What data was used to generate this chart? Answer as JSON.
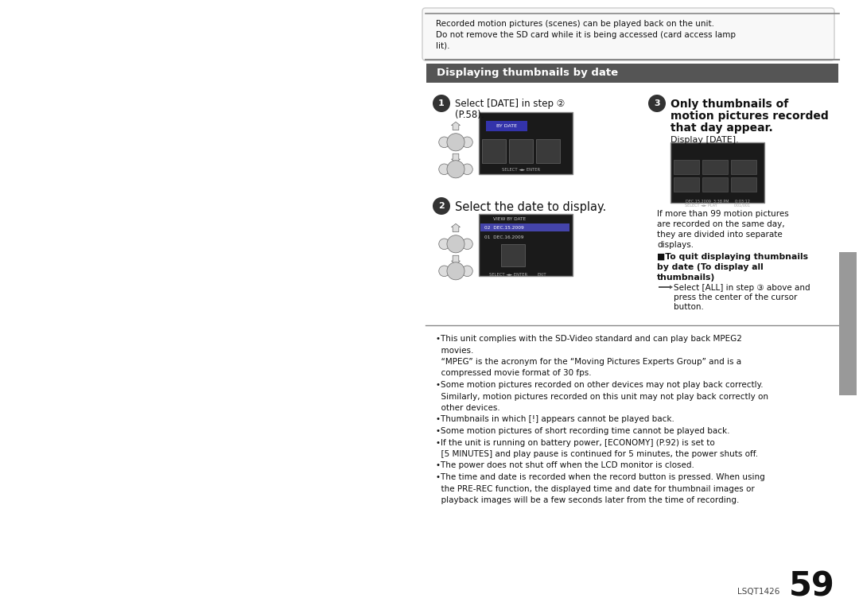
{
  "bg_color": "#f0f0f0",
  "page_bg": "#ffffff",
  "right_tab_color": "#a0a0a0",
  "header_bar_color": "#555555",
  "header_text": "Displaying thumbnails by date",
  "header_text_color": "#ffffff",
  "top_note_line1": "Recorded motion pictures (scenes) can be played back on the unit.",
  "top_note_line2": "Do not remove the SD card while it is being accessed (card access lamp",
  "top_note_line3": "lit).",
  "step1_text_line1": "Select [DATE] in step ②",
  "step1_text_line2": "(P.58).",
  "step2_text": "Select the date to display.",
  "step3_text_line1": "Only thumbnails of",
  "step3_text_line2": "motion pictures recorded",
  "step3_text_line3": "that day appear.",
  "display_date_label": "Display [DATE].",
  "page_number": "59",
  "lsqt_code": "LSQT1426",
  "bottom_lines": [
    "•This unit complies with the SD-Video standard and can play back MPEG2",
    "  movies.",
    "  “MPEG” is the acronym for the “Moving Pictures Experts Group” and is a",
    "  compressed movie format of 30 fps.",
    "•Some motion pictures recorded on other devices may not play back correctly.",
    "  Similarly, motion pictures recorded on this unit may not play back correctly on",
    "  other devices.",
    "•Thumbnails in which [!] appears cannot be played back.",
    "•Some motion pictures of short recording time cannot be played back.",
    "•If the unit is running on battery power, [ECONOMY] (P.92) is set to",
    "  [5 MINUTES] and play pause is continued for 5 minutes, the power shuts off.",
    "•The power does not shut off when the LCD monitor is closed.",
    "•The time and date is recorded when the record button is pressed. When using",
    "  the PRE-REC function, the displayed time and date for thumbnail images or",
    "  playback images will be a few seconds later from the time of recording."
  ]
}
